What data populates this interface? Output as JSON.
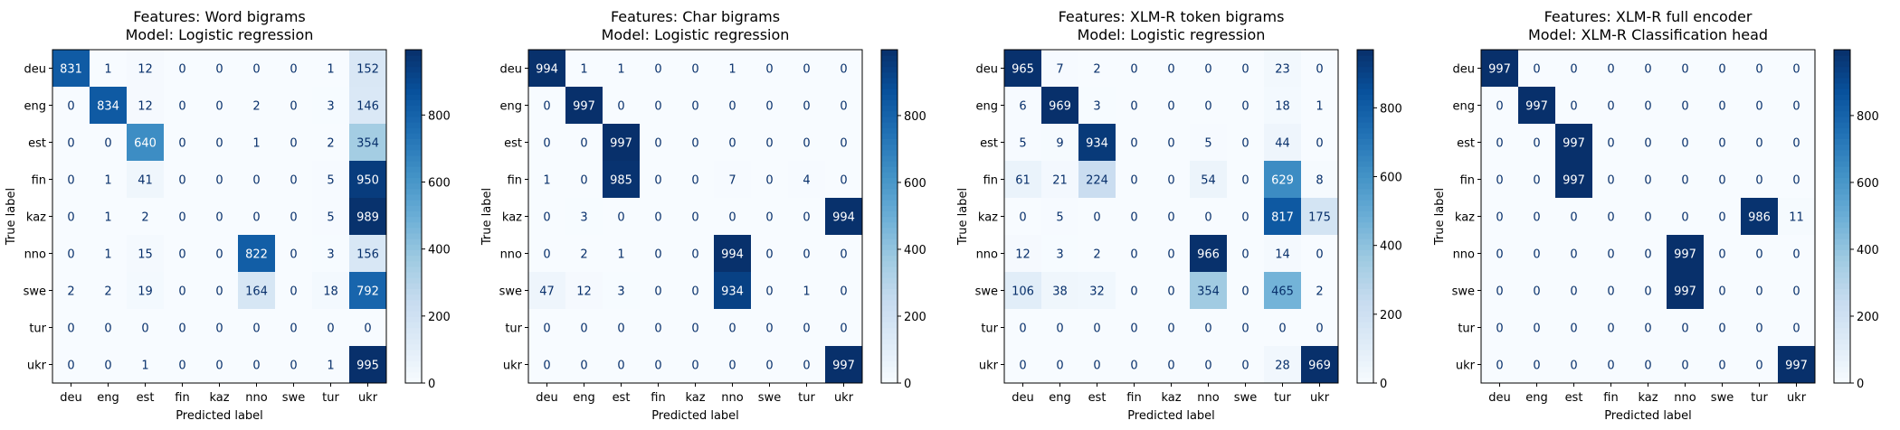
{
  "labels": [
    "deu",
    "eng",
    "est",
    "fin",
    "kaz",
    "nno",
    "swe",
    "tur",
    "ukr"
  ],
  "xlabel": "Predicted label",
  "ylabel": "True label",
  "colorbar_ticks": [
    0,
    200,
    400,
    600,
    800
  ],
  "colormap": [
    "#f7fbff",
    "#deebf7",
    "#c6dbef",
    "#9ecae1",
    "#6baed6",
    "#4292c6",
    "#2171b5",
    "#08519c",
    "#08306b"
  ],
  "text_colors": {
    "light": "#ffffff",
    "dark": "#08306b"
  },
  "chart_data": [
    {
      "type": "heatmap",
      "title_line1": "Features: Word bigrams",
      "title_line2": "Model: Logistic regression",
      "vmin": 0,
      "vmax": 995,
      "matrix": [
        [
          831,
          1,
          12,
          0,
          0,
          0,
          0,
          1,
          152
        ],
        [
          0,
          834,
          12,
          0,
          0,
          2,
          0,
          3,
          146
        ],
        [
          0,
          0,
          640,
          0,
          0,
          1,
          0,
          2,
          354
        ],
        [
          0,
          1,
          41,
          0,
          0,
          0,
          0,
          5,
          950
        ],
        [
          0,
          1,
          2,
          0,
          0,
          0,
          0,
          5,
          989
        ],
        [
          0,
          1,
          15,
          0,
          0,
          822,
          0,
          3,
          156
        ],
        [
          2,
          2,
          19,
          0,
          0,
          164,
          0,
          18,
          792
        ],
        [
          0,
          0,
          0,
          0,
          0,
          0,
          0,
          0,
          0
        ],
        [
          0,
          0,
          1,
          0,
          0,
          0,
          0,
          1,
          995
        ]
      ]
    },
    {
      "type": "heatmap",
      "title_line1": "Features: Char bigrams",
      "title_line2": "Model: Logistic regression",
      "vmin": 0,
      "vmax": 997,
      "matrix": [
        [
          994,
          1,
          1,
          0,
          0,
          1,
          0,
          0,
          0
        ],
        [
          0,
          997,
          0,
          0,
          0,
          0,
          0,
          0,
          0
        ],
        [
          0,
          0,
          997,
          0,
          0,
          0,
          0,
          0,
          0
        ],
        [
          1,
          0,
          985,
          0,
          0,
          7,
          0,
          4,
          0
        ],
        [
          0,
          3,
          0,
          0,
          0,
          0,
          0,
          0,
          994
        ],
        [
          0,
          2,
          1,
          0,
          0,
          994,
          0,
          0,
          0
        ],
        [
          47,
          12,
          3,
          0,
          0,
          934,
          0,
          1,
          0
        ],
        [
          0,
          0,
          0,
          0,
          0,
          0,
          0,
          0,
          0
        ],
        [
          0,
          0,
          0,
          0,
          0,
          0,
          0,
          0,
          997
        ]
      ]
    },
    {
      "type": "heatmap",
      "title_line1": "Features: XLM-R token bigrams",
      "title_line2": "Model: Logistic regression",
      "vmin": 0,
      "vmax": 969,
      "matrix": [
        [
          965,
          7,
          2,
          0,
          0,
          0,
          0,
          23,
          0
        ],
        [
          6,
          969,
          3,
          0,
          0,
          0,
          0,
          18,
          1
        ],
        [
          5,
          9,
          934,
          0,
          0,
          5,
          0,
          44,
          0
        ],
        [
          61,
          21,
          224,
          0,
          0,
          54,
          0,
          629,
          8
        ],
        [
          0,
          5,
          0,
          0,
          0,
          0,
          0,
          817,
          175
        ],
        [
          12,
          3,
          2,
          0,
          0,
          966,
          0,
          14,
          0
        ],
        [
          106,
          38,
          32,
          0,
          0,
          354,
          0,
          465,
          2
        ],
        [
          0,
          0,
          0,
          0,
          0,
          0,
          0,
          0,
          0
        ],
        [
          0,
          0,
          0,
          0,
          0,
          0,
          0,
          28,
          969
        ]
      ]
    },
    {
      "type": "heatmap",
      "title_line1": "Features: XLM-R full encoder",
      "title_line2": "Model: XLM-R Classification head",
      "vmin": 0,
      "vmax": 997,
      "matrix": [
        [
          997,
          0,
          0,
          0,
          0,
          0,
          0,
          0,
          0
        ],
        [
          0,
          997,
          0,
          0,
          0,
          0,
          0,
          0,
          0
        ],
        [
          0,
          0,
          997,
          0,
          0,
          0,
          0,
          0,
          0
        ],
        [
          0,
          0,
          997,
          0,
          0,
          0,
          0,
          0,
          0
        ],
        [
          0,
          0,
          0,
          0,
          0,
          0,
          0,
          986,
          11
        ],
        [
          0,
          0,
          0,
          0,
          0,
          997,
          0,
          0,
          0
        ],
        [
          0,
          0,
          0,
          0,
          0,
          997,
          0,
          0,
          0
        ],
        [
          0,
          0,
          0,
          0,
          0,
          0,
          0,
          0,
          0
        ],
        [
          0,
          0,
          0,
          0,
          0,
          0,
          0,
          0,
          997
        ]
      ]
    }
  ]
}
